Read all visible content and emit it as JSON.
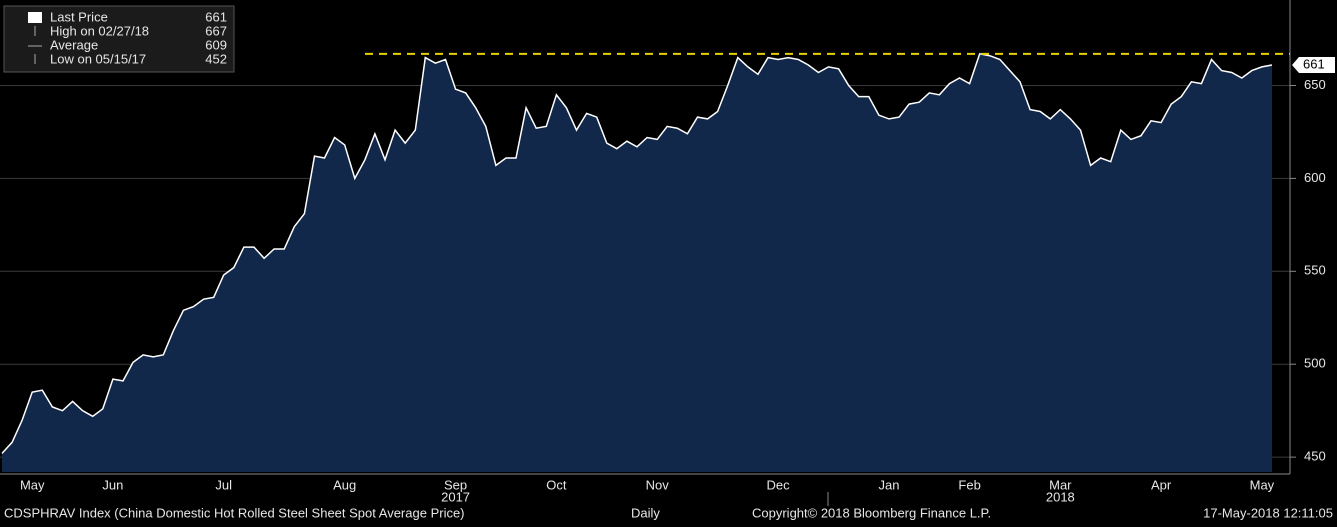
{
  "chart_data": {
    "type": "area",
    "series": [
      {
        "name": "Last Price",
        "color": "#ffffff",
        "fill": "#12284a",
        "values": [
          452,
          458,
          470,
          485,
          486,
          477,
          475,
          480,
          475,
          472,
          476,
          492,
          491,
          501,
          505,
          504,
          505,
          518,
          529,
          531,
          535,
          536,
          548,
          552,
          563,
          563,
          557,
          562,
          562,
          574,
          581,
          612,
          611,
          622,
          618,
          600,
          610,
          624,
          610,
          626,
          619,
          626,
          665,
          662,
          664,
          648,
          646,
          638,
          628,
          607,
          611,
          611,
          638,
          627,
          628,
          645,
          638,
          626,
          635,
          633,
          619,
          616,
          620,
          617,
          622,
          621,
          628,
          627,
          624,
          633,
          632,
          636,
          650,
          665,
          660,
          656,
          665,
          664,
          665,
          664,
          661,
          657,
          660,
          659,
          650,
          644,
          644,
          634,
          632,
          633,
          640,
          641,
          646,
          645,
          651,
          654,
          651,
          667,
          666,
          664,
          658,
          652,
          637,
          636,
          632,
          637,
          632,
          626,
          607,
          611,
          609,
          626,
          621,
          623,
          631,
          630,
          640,
          644,
          652,
          651,
          664,
          658,
          657,
          654,
          658,
          660,
          661
        ]
      }
    ],
    "categories": [
      null,
      null,
      null,
      "May",
      null,
      null,
      null,
      null,
      null,
      null,
      null,
      "Jun",
      null,
      null,
      null,
      null,
      null,
      null,
      null,
      null,
      null,
      null,
      "Jul",
      null,
      null,
      null,
      null,
      null,
      null,
      null,
      null,
      null,
      null,
      null,
      "Aug",
      null,
      null,
      null,
      null,
      null,
      null,
      null,
      null,
      null,
      null,
      "Sep",
      null,
      null,
      null,
      null,
      null,
      null,
      null,
      null,
      null,
      "Oct",
      null,
      null,
      null,
      null,
      null,
      null,
      null,
      null,
      null,
      "Nov",
      null,
      null,
      null,
      null,
      null,
      null,
      null,
      null,
      null,
      null,
      null,
      "Dec",
      null,
      null,
      null,
      null,
      null,
      null,
      null,
      null,
      null,
      null,
      "Jan",
      null,
      null,
      null,
      null,
      null,
      null,
      null,
      "Feb",
      null,
      null,
      null,
      null,
      null,
      null,
      null,
      null,
      "Mar",
      null,
      null,
      null,
      null,
      null,
      null,
      null,
      null,
      null,
      "Apr",
      null,
      null,
      null,
      null,
      null,
      null,
      null,
      null,
      null,
      "May",
      null
    ],
    "year_labels": [
      {
        "value": 45,
        "label": "2017"
      },
      {
        "value": 105,
        "label": "2018"
      }
    ],
    "ylim": [
      442,
      696
    ],
    "yticks": [
      450,
      500,
      550,
      600,
      650
    ],
    "grid": true,
    "last_price": 661,
    "stats": [
      {
        "label": "High on 02/27/18",
        "value": 667
      },
      {
        "label": "Average",
        "value": 609
      },
      {
        "label": "Low on 05/15/17",
        "value": 452
      }
    ],
    "high_line_color": "#e8d000",
    "footer": {
      "source": "CDSPHRAV Index (China Domestic Hot Rolled Steel Sheet Spot Average Price)",
      "frequency": "Daily",
      "copyright": "Copyright© 2018 Bloomberg Finance L.P.",
      "timestamp": "17-May-2018 12:11:05"
    }
  }
}
